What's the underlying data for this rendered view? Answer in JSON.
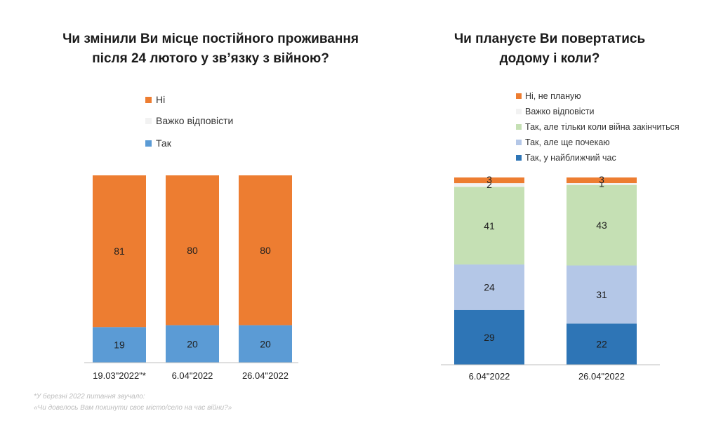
{
  "chart_data": [
    {
      "type": "bar",
      "stacked": true,
      "title_line1": "Чи змінили Ви місце постійного проживання",
      "title_line2": "після  24 лютого у зв’язку з війною?",
      "categories": [
        "19.03\"2022\"*",
        "6.04\"2022",
        "26.04\"2022"
      ],
      "series": [
        {
          "name": "Так",
          "color": "#5b9bd5",
          "values": [
            19,
            20,
            20
          ]
        },
        {
          "name": "Важко відповісти",
          "color": "#f2f2f2",
          "values": [
            0,
            0,
            0
          ]
        },
        {
          "name": "Ні",
          "color": "#ed7d31",
          "values": [
            81,
            80,
            80
          ]
        }
      ],
      "legend": [
        "Ні",
        "Важко відповісти",
        "Так"
      ],
      "ylim": [
        0,
        100
      ],
      "xlabel": "",
      "ylabel": ""
    },
    {
      "type": "bar",
      "stacked": true,
      "title_line1": "Чи плануєте Ви повертатись",
      "title_line2": "додому і коли?",
      "categories": [
        "6.04\"2022",
        "26.04\"2022"
      ],
      "series": [
        {
          "name": "Так, у найближчий час",
          "color": "#2e75b6",
          "values": [
            29,
            22
          ]
        },
        {
          "name": "Так, але ще почекаю",
          "color": "#b4c7e7",
          "values": [
            24,
            31
          ]
        },
        {
          "name": "Так, але тільки коли війна закінчиться",
          "color": "#c5e0b4",
          "values": [
            41,
            43
          ]
        },
        {
          "name": "Важко відповісти",
          "color": "#f2f2f2",
          "values": [
            2,
            1
          ]
        },
        {
          "name": "Ні, не планую",
          "color": "#ed7d31",
          "values": [
            3,
            3
          ]
        }
      ],
      "legend": [
        "Ні, не планую",
        "Важко відповісти",
        "Так, але тільки коли війна закінчиться",
        "Так, але ще почекаю",
        "Так, у найближчий час"
      ],
      "ylim": [
        0,
        100
      ],
      "xlabel": "",
      "ylabel": ""
    }
  ],
  "footnote": {
    "line1": "*У березні 2022 питання звучало:",
    "line2": "«Чи довелось Вам покинути своє місто/село на час війни?»"
  }
}
